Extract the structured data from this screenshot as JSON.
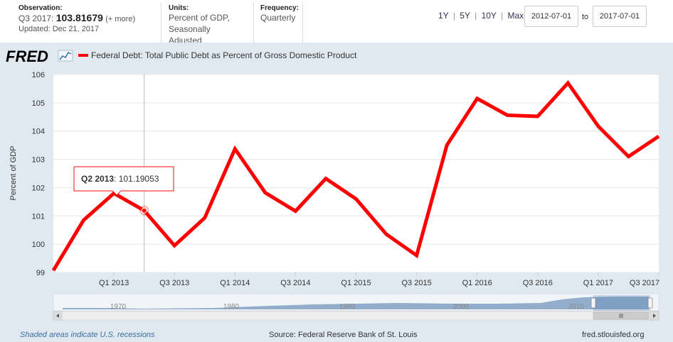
{
  "header": {
    "observation_label": "Observation:",
    "observation_period": "Q3 2017:",
    "observation_value": "103.81679",
    "observation_more": "(+ more)",
    "updated": "Updated: Dec 21, 2017",
    "units_label": "Units:",
    "units_line1": "Percent of GDP,",
    "units_line2": "Seasonally Adjusted",
    "frequency_label": "Frequency:",
    "frequency_value": "Quarterly",
    "range_1y": "1Y",
    "range_5y": "5Y",
    "range_10y": "10Y",
    "range_max": "Max",
    "sep": "|",
    "date_from": "2012-07-01",
    "to_label": "to",
    "date_to": "2017-07-01"
  },
  "logo_text": "FRED",
  "tooltip": {
    "period": "Q2 2013",
    "value": ": 101.19053"
  },
  "navigator": {
    "years": [
      "1970",
      "1980",
      "1990",
      "2000",
      "2010"
    ]
  },
  "footer": {
    "recession_note": "Shaded areas indicate U.S. recessions",
    "source": "Source: Federal Reserve Bank of St. Louis",
    "site": "fred.stlouisfed.org"
  },
  "colors": {
    "line": "#ff0000",
    "background": "#e1e9f0",
    "plot": "#ffffff",
    "navigator": "#4572a7"
  },
  "chart_data": {
    "type": "line",
    "title": "Federal Debt: Total Public Debt as Percent of Gross Domestic Product",
    "ylabel": "Percent of GDP",
    "xlabel": "",
    "ylim": [
      99,
      106
    ],
    "yticks": [
      99,
      100,
      101,
      102,
      103,
      104,
      105,
      106
    ],
    "xtick_labels": [
      "Q1 2013",
      "Q3 2013",
      "Q1 2014",
      "Q3 2014",
      "Q1 2015",
      "Q3 2015",
      "Q1 2016",
      "Q3 2016",
      "Q1 2017",
      "Q3 2017"
    ],
    "grid": true,
    "legend": "top-left",
    "series": [
      {
        "name": "Federal Debt: Total Public Debt as Percent of Gross Domestic Product",
        "x": [
          "Q3 2012",
          "Q4 2012",
          "Q1 2013",
          "Q2 2013",
          "Q3 2013",
          "Q4 2013",
          "Q1 2014",
          "Q2 2014",
          "Q3 2014",
          "Q4 2014",
          "Q1 2015",
          "Q2 2015",
          "Q3 2015",
          "Q4 2015",
          "Q1 2016",
          "Q2 2016",
          "Q3 2016",
          "Q4 2016",
          "Q1 2017",
          "Q2 2017",
          "Q3 2017"
        ],
        "values": [
          99.07,
          100.85,
          101.8,
          101.19053,
          99.95,
          100.93,
          103.37,
          101.82,
          101.17,
          102.32,
          101.6,
          100.35,
          99.6,
          103.5,
          105.15,
          104.56,
          104.52,
          105.7,
          104.17,
          103.1,
          103.81679
        ]
      }
    ]
  }
}
